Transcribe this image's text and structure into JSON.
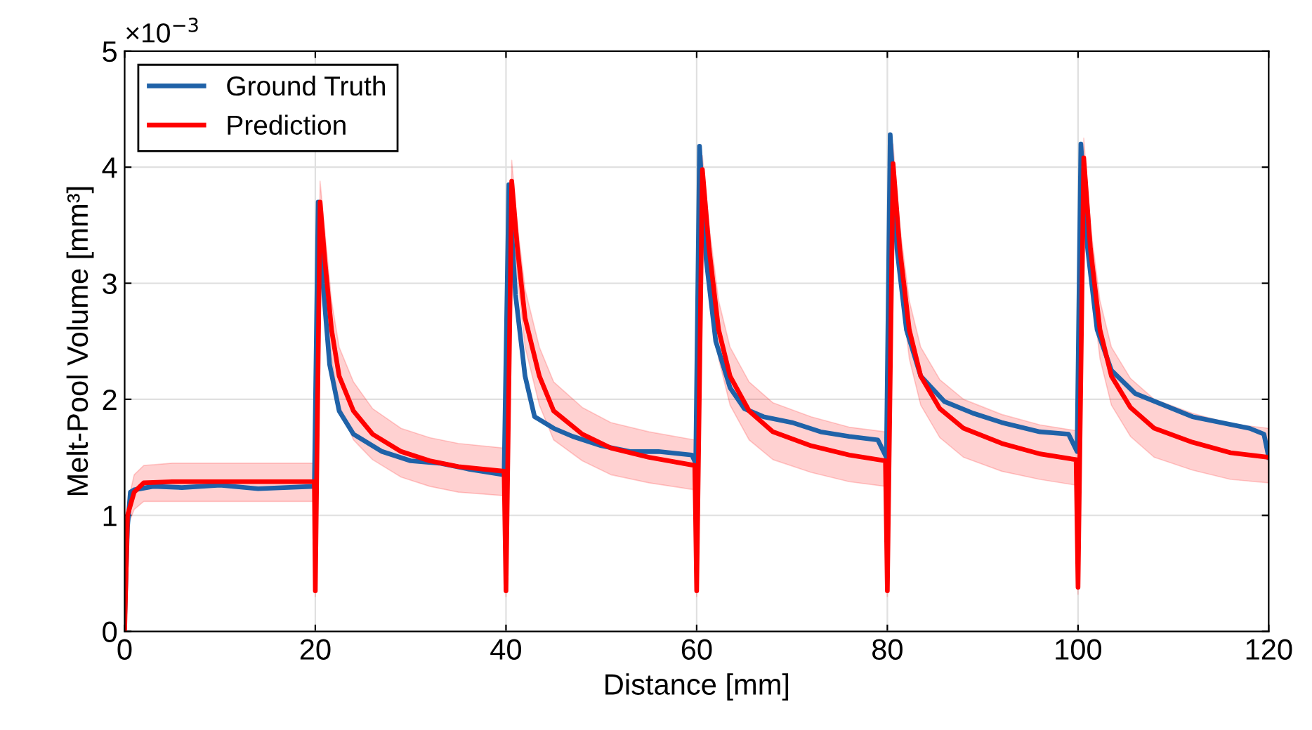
{
  "chart_data": {
    "type": "line",
    "xlabel": "Distance [mm]",
    "ylabel": "Melt-Pool Volume [mm³]",
    "annotations": [
      "×10$^{−3}$"
    ],
    "xlim": [
      0,
      120
    ],
    "xticks": [
      0,
      20,
      40,
      60,
      80,
      100,
      120
    ],
    "ylim": [
      0,
      5
    ],
    "yticks": [
      0,
      1,
      2,
      3,
      4,
      5
    ],
    "grid": true,
    "legend": "top left",
    "line_style": "solid",
    "series": [
      {
        "name": "Ground Truth",
        "color": "#1f62a8",
        "x": [
          0,
          0.3,
          0.6,
          1,
          3,
          6,
          10,
          14,
          19.9,
          20.3,
          20.8,
          21.5,
          22.5,
          24,
          27,
          30,
          33,
          36,
          39.8,
          40.3,
          41,
          42,
          43,
          45,
          47,
          50,
          53,
          56,
          59.5,
          59.9,
          60.3,
          61,
          62,
          63.5,
          65,
          67,
          70,
          73,
          76,
          79,
          79.9,
          80.3,
          81,
          82,
          83.5,
          86,
          89,
          92,
          96,
          99,
          99.9,
          100.3,
          101,
          102,
          103.5,
          106,
          109,
          112,
          115,
          118,
          119.5,
          120
        ],
        "values": [
          0.1,
          0.9,
          1.2,
          1.22,
          1.25,
          1.24,
          1.26,
          1.23,
          1.25,
          3.7,
          3.0,
          2.3,
          1.9,
          1.7,
          1.55,
          1.47,
          1.45,
          1.4,
          1.35,
          3.85,
          2.9,
          2.2,
          1.85,
          1.75,
          1.68,
          1.6,
          1.55,
          1.55,
          1.52,
          1.45,
          4.18,
          3.2,
          2.5,
          2.1,
          1.92,
          1.85,
          1.8,
          1.72,
          1.68,
          1.65,
          1.5,
          4.28,
          3.3,
          2.6,
          2.2,
          1.98,
          1.88,
          1.8,
          1.72,
          1.7,
          1.55,
          4.2,
          3.3,
          2.6,
          2.25,
          2.05,
          1.95,
          1.85,
          1.8,
          1.75,
          1.7,
          1.5
        ]
      },
      {
        "name": "Prediction",
        "color": "#ff0000",
        "x": [
          0,
          0.3,
          1,
          2,
          5,
          19.9,
          20,
          20.5,
          21,
          21.7,
          22.5,
          24,
          26,
          29,
          32,
          35,
          39.8,
          40,
          40.6,
          41.2,
          42,
          43.5,
          45,
          48,
          51,
          55,
          59.8,
          60,
          60.6,
          61.3,
          62.3,
          63.5,
          65.5,
          68,
          72,
          76,
          79.8,
          80,
          80.6,
          81.3,
          82.3,
          83.5,
          85.5,
          88,
          92,
          96,
          99.8,
          100,
          100.6,
          101.3,
          102.3,
          103.5,
          105.5,
          108,
          112,
          116,
          120
        ],
        "values": [
          0,
          1.0,
          1.2,
          1.28,
          1.29,
          1.29,
          0.35,
          3.7,
          3.2,
          2.6,
          2.2,
          1.9,
          1.7,
          1.55,
          1.47,
          1.42,
          1.38,
          0.35,
          3.88,
          3.3,
          2.7,
          2.2,
          1.9,
          1.7,
          1.58,
          1.5,
          1.43,
          0.35,
          3.98,
          3.3,
          2.6,
          2.2,
          1.9,
          1.72,
          1.6,
          1.52,
          1.47,
          0.35,
          4.03,
          3.3,
          2.6,
          2.2,
          1.92,
          1.75,
          1.62,
          1.53,
          1.48,
          0.38,
          4.08,
          3.3,
          2.6,
          2.2,
          1.93,
          1.75,
          1.63,
          1.54,
          1.5
        ],
        "upper": [
          0,
          1.1,
          1.35,
          1.43,
          1.45,
          1.45,
          0.4,
          3.88,
          3.45,
          2.85,
          2.45,
          2.15,
          1.92,
          1.75,
          1.67,
          1.62,
          1.58,
          0.4,
          4.06,
          3.5,
          2.95,
          2.45,
          2.15,
          1.93,
          1.8,
          1.72,
          1.65,
          0.4,
          4.1,
          3.5,
          2.85,
          2.45,
          2.15,
          1.97,
          1.85,
          1.76,
          1.72,
          0.4,
          4.2,
          3.5,
          2.85,
          2.45,
          2.17,
          2.0,
          1.87,
          1.78,
          1.73,
          0.42,
          4.25,
          3.5,
          2.85,
          2.45,
          2.18,
          2.0,
          1.88,
          1.79,
          1.75
        ],
        "lower": [
          0,
          0.9,
          1.05,
          1.12,
          1.12,
          1.12,
          0.3,
          3.5,
          2.95,
          2.35,
          1.95,
          1.65,
          1.48,
          1.33,
          1.25,
          1.2,
          1.17,
          0.3,
          3.68,
          3.05,
          2.45,
          1.95,
          1.65,
          1.47,
          1.35,
          1.28,
          1.22,
          0.3,
          3.8,
          3.05,
          2.35,
          1.95,
          1.65,
          1.48,
          1.37,
          1.29,
          1.25,
          0.3,
          3.85,
          3.05,
          2.35,
          1.95,
          1.67,
          1.5,
          1.38,
          1.31,
          1.26,
          0.32,
          3.9,
          3.05,
          2.35,
          1.95,
          1.68,
          1.5,
          1.39,
          1.31,
          1.28
        ]
      }
    ]
  }
}
